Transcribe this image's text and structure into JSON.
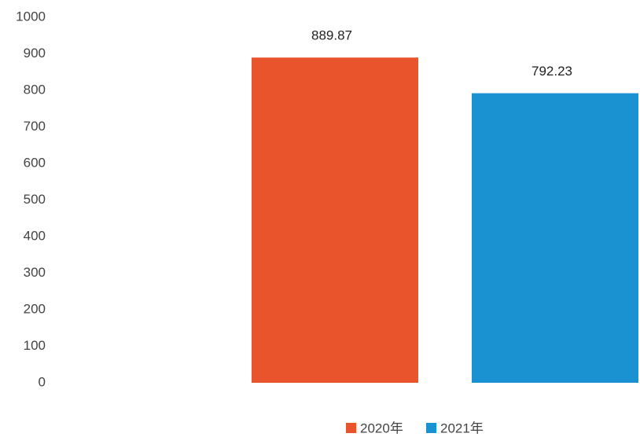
{
  "chart_data": {
    "type": "bar",
    "categories": [
      null
    ],
    "series": [
      {
        "name": "2020年",
        "color": "#e9542c",
        "values": [
          889.87
        ]
      },
      {
        "name": "2021年",
        "color": "#1a92d2",
        "values": [
          792.23
        ]
      }
    ],
    "ylim": [
      0,
      1000
    ],
    "yticks": [
      0,
      100,
      200,
      300,
      400,
      500,
      600,
      700,
      800,
      900,
      1000
    ],
    "grid": false,
    "legend": "bottom"
  }
}
